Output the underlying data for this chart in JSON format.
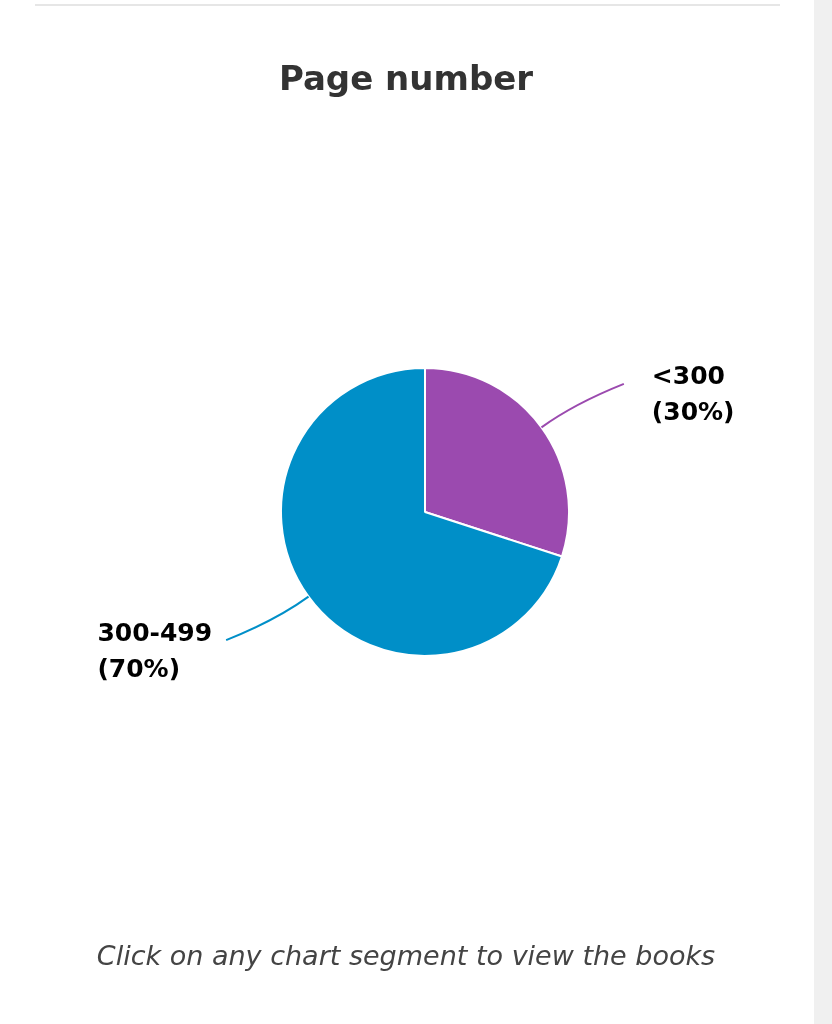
{
  "chart_data": {
    "type": "pie",
    "title": "Page number",
    "categories": [
      "<300",
      "300-499"
    ],
    "values": [
      30,
      70
    ],
    "colors": [
      "#9b4aaf",
      "#008fc8"
    ],
    "value_labels": [
      "(30%)",
      "(70%)"
    ],
    "legend": false,
    "annotations": [
      "Click on any chart segment to view the books"
    ]
  }
}
